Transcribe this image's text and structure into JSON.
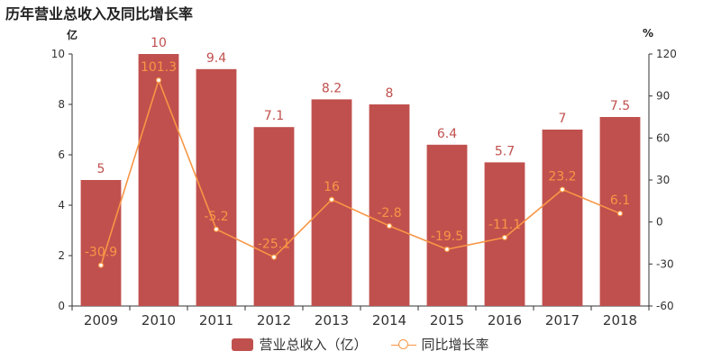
{
  "title": "历年营业总收入及同比增长率",
  "colors": {
    "bar": "#c0504d",
    "line": "#f79646",
    "axis": "#333333",
    "grid": "#e6e6e6"
  },
  "chart_data": {
    "type": "bar",
    "title": "历年营业总收入及同比增长率",
    "categories": [
      "2009",
      "2010",
      "2011",
      "2012",
      "2013",
      "2014",
      "2015",
      "2016",
      "2017",
      "2018"
    ],
    "series": [
      {
        "name": "营业总收入（亿）",
        "type": "bar",
        "axis": "left",
        "values": [
          5,
          10,
          9.4,
          7.1,
          8.2,
          8,
          6.4,
          5.7,
          7,
          7.5
        ],
        "labels": [
          "5",
          "10",
          "9.4",
          "7.1",
          "8.2",
          "8",
          "6.4",
          "5.7",
          "7",
          "7.5"
        ]
      },
      {
        "name": "同比增长率",
        "type": "line",
        "axis": "right",
        "values": [
          -30.9,
          101.3,
          -5.2,
          -25.1,
          16,
          -2.8,
          -19.5,
          -11.1,
          23.2,
          6.1
        ],
        "labels": [
          "-30.9",
          "101.3",
          "-5.2",
          "-25.1",
          "16",
          "-2.8",
          "-19.5",
          "-11.1",
          "23.2",
          "6.1"
        ]
      }
    ],
    "y_left": {
      "unit": "亿",
      "ylim": [
        0,
        10
      ],
      "ticks": [
        "0",
        "2",
        "4",
        "6",
        "8",
        "10"
      ]
    },
    "y_right": {
      "unit": "%",
      "ylim": [
        -60,
        120
      ],
      "ticks": [
        "-60",
        "-30",
        "0",
        "30",
        "60",
        "90",
        "120"
      ]
    },
    "grid": false,
    "legend": "bottom-center"
  }
}
